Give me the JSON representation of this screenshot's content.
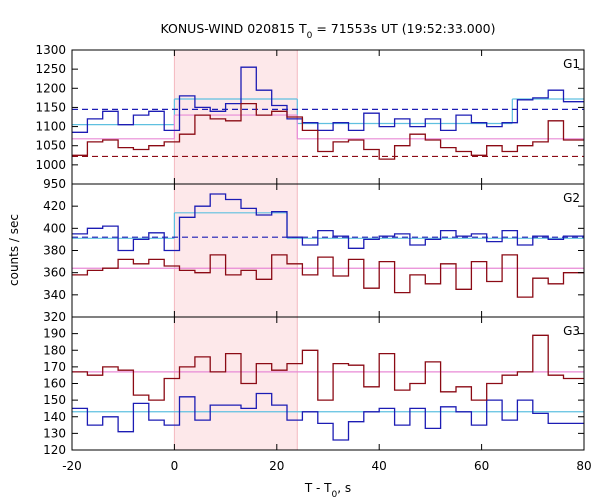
{
  "chart_data": {
    "type": "line",
    "title_main": "KONUS-WIND 020815 T",
    "title_sub": "0",
    "title_rest": " = 71553s UT (19:52:33.000)",
    "xlabel_main": "T - T",
    "xlabel_sub": "0",
    "xlabel_rest": ", s",
    "ylabel": "counts / sec",
    "xlim": [
      -20,
      80
    ],
    "x_ticks": [
      "-20",
      "0",
      "20",
      "40",
      "60",
      "80"
    ],
    "x_tick_values": [
      -20,
      0,
      20,
      40,
      60,
      80
    ],
    "highlight_interval": [
      0,
      24
    ],
    "colors": {
      "blue": "#1c1cb4",
      "red": "#8b0a14",
      "cyan": "#5fc0e0",
      "pink": "#e88ad6",
      "highlight": "#fde8ea"
    },
    "panels": [
      {
        "name": "G1",
        "ylim": [
          950,
          1300
        ],
        "y_ticks": [
          "950",
          "1000",
          "1050",
          "1100",
          "1150",
          "1200",
          "1250",
          "1300"
        ],
        "y_tick_values": [
          950,
          1000,
          1050,
          1100,
          1150,
          1200,
          1250,
          1300
        ],
        "bin_edges": [
          -20,
          -17,
          -14,
          -11,
          -8,
          -5,
          -2,
          1,
          4,
          7,
          10,
          13,
          16,
          19,
          22,
          25,
          28,
          31,
          34,
          37,
          40,
          43,
          46,
          49,
          52,
          55,
          58,
          61,
          64,
          67,
          70,
          73,
          76,
          80
        ],
        "series": [
          {
            "color_key": "blue",
            "values": [
              1085,
              1120,
              1140,
              1105,
              1130,
              1140,
              1090,
              1180,
              1150,
              1140,
              1160,
              1255,
              1195,
              1155,
              1120,
              1110,
              1090,
              1110,
              1090,
              1135,
              1100,
              1120,
              1100,
              1120,
              1090,
              1130,
              1110,
              1100,
              1110,
              1170,
              1175,
              1195,
              1165
            ]
          },
          {
            "color_key": "red",
            "values": [
              1025,
              1060,
              1065,
              1045,
              1040,
              1050,
              1060,
              1080,
              1130,
              1120,
              1115,
              1160,
              1130,
              1140,
              1125,
              1090,
              1035,
              1060,
              1065,
              1040,
              1015,
              1050,
              1080,
              1065,
              1045,
              1035,
              1025,
              1050,
              1035,
              1050,
              1060,
              1115,
              1065
            ]
          }
        ],
        "fits": [
          {
            "color_key": "cyan",
            "style": "solid",
            "segments": [
              [
                -20,
                0,
                1105
              ],
              [
                0,
                24,
                1172
              ],
              [
                24,
                66,
                1108
              ],
              [
                66,
                80,
                1172
              ]
            ]
          },
          {
            "color_key": "blue",
            "style": "dashed",
            "segments": [
              [
                -20,
                80,
                1145
              ]
            ]
          },
          {
            "color_key": "pink",
            "style": "solid",
            "segments": [
              [
                -20,
                0,
                1068
              ],
              [
                0,
                24,
                1130
              ],
              [
                24,
                80,
                1068
              ]
            ]
          },
          {
            "color_key": "red",
            "style": "dashed",
            "segments": [
              [
                -20,
                80,
                1022
              ]
            ]
          }
        ]
      },
      {
        "name": "G2",
        "ylim": [
          320,
          440
        ],
        "y_ticks": [
          "320",
          "340",
          "360",
          "380",
          "400",
          "420"
        ],
        "y_tick_values": [
          320,
          340,
          360,
          380,
          400,
          420
        ],
        "bin_edges": [
          -20,
          -17,
          -14,
          -11,
          -8,
          -5,
          -2,
          1,
          4,
          7,
          10,
          13,
          16,
          19,
          22,
          25,
          28,
          31,
          34,
          37,
          40,
          43,
          46,
          49,
          52,
          55,
          58,
          61,
          64,
          67,
          70,
          73,
          76,
          80
        ],
        "series": [
          {
            "color_key": "blue",
            "values": [
              395,
              400,
              402,
              380,
              390,
              396,
              380,
              410,
              420,
              431,
              426,
              418,
              412,
              415,
              392,
              385,
              398,
              393,
              382,
              390,
              393,
              395,
              385,
              390,
              398,
              393,
              395,
              388,
              398,
              385,
              393,
              390,
              393
            ]
          },
          {
            "color_key": "red",
            "values": [
              358,
              362,
              364,
              372,
              368,
              372,
              366,
              362,
              360,
              376,
              358,
              362,
              354,
              376,
              368,
              358,
              374,
              357,
              372,
              346,
              370,
              342,
              358,
              350,
              368,
              345,
              370,
              352,
              376,
              338,
              355,
              350,
              360
            ]
          }
        ],
        "fits": [
          {
            "color_key": "cyan",
            "style": "solid",
            "segments": [
              [
                -20,
                0,
                391
              ],
              [
                0,
                22,
                414
              ],
              [
                22,
                80,
                391
              ]
            ]
          },
          {
            "color_key": "blue",
            "style": "dashed",
            "segments": [
              [
                -20,
                80,
                392
              ]
            ]
          },
          {
            "color_key": "pink",
            "style": "solid",
            "segments": [
              [
                -20,
                80,
                364
              ]
            ]
          }
        ]
      },
      {
        "name": "G3",
        "ylim": [
          120,
          200
        ],
        "y_ticks": [
          "120",
          "130",
          "140",
          "150",
          "160",
          "170",
          "180",
          "190"
        ],
        "y_tick_values": [
          120,
          130,
          140,
          150,
          160,
          170,
          180,
          190
        ],
        "bin_edges": [
          -20,
          -17,
          -14,
          -11,
          -8,
          -5,
          -2,
          1,
          4,
          7,
          10,
          13,
          16,
          19,
          22,
          25,
          28,
          31,
          34,
          37,
          40,
          43,
          46,
          49,
          52,
          55,
          58,
          61,
          64,
          67,
          70,
          73,
          76,
          80
        ],
        "series": [
          {
            "color_key": "blue",
            "values": [
              145,
              135,
              140,
              131,
              148,
              138,
              135,
              152,
              138,
              147,
              147,
              145,
              154,
              147,
              138,
              143,
              136,
              126,
              137,
              143,
              145,
              135,
              145,
              133,
              146,
              143,
              135,
              150,
              138,
              150,
              142,
              136,
              136
            ]
          },
          {
            "color_key": "red",
            "values": [
              167,
              165,
              170,
              168,
              153,
              150,
              163,
              170,
              176,
              167,
              178,
              160,
              172,
              168,
              172,
              180,
              150,
              172,
              171,
              158,
              178,
              156,
              160,
              173,
              155,
              158,
              150,
              160,
              165,
              167,
              189,
              165,
              163
            ]
          }
        ],
        "fits": [
          {
            "color_key": "cyan",
            "style": "solid",
            "segments": [
              [
                -20,
                80,
                143
              ]
            ]
          },
          {
            "color_key": "pink",
            "style": "solid",
            "segments": [
              [
                -20,
                80,
                167
              ]
            ]
          }
        ]
      }
    ]
  }
}
